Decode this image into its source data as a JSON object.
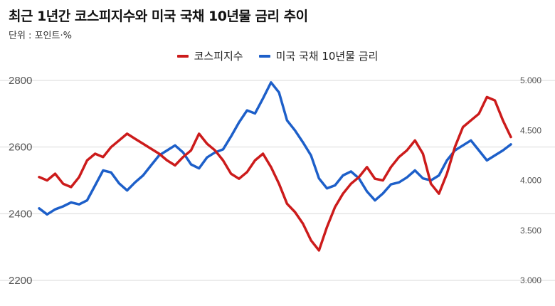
{
  "title": "최근 1년간 코스피지수와 미국 국채 10년물 금리 추이",
  "subtitle": "단위 : 포인트·%",
  "colors": {
    "kospi": "#cc1b1b",
    "treasury": "#1d5fc9",
    "grid": "#d9d9d9"
  },
  "chart_data": {
    "type": "line",
    "title": "최근 1년간 코스피지수와 미국 국채 10년물 금리 추이",
    "subtitle": "단위 : 포인트·%",
    "legend_position": "top-center",
    "grid": true,
    "x_points": 60,
    "left_axis": {
      "ylim": [
        2200,
        2800
      ],
      "ticks": [
        "2800",
        "2600",
        "2400",
        "2200"
      ],
      "tick_values": [
        2800,
        2600,
        2400,
        2200
      ]
    },
    "right_axis": {
      "ylim": [
        3.0,
        5.0
      ],
      "ticks": [
        "5.000",
        "4.500",
        "4.000",
        "3.500",
        "3.000"
      ],
      "tick_values": [
        5.0,
        4.5,
        4.0,
        3.5,
        3.0
      ]
    },
    "series": [
      {
        "name": "코스피지수",
        "axis": "left",
        "values": [
          2510,
          2500,
          2520,
          2490,
          2480,
          2510,
          2560,
          2580,
          2570,
          2600,
          2620,
          2640,
          2625,
          2610,
          2595,
          2580,
          2560,
          2545,
          2570,
          2590,
          2640,
          2610,
          2590,
          2560,
          2520,
          2505,
          2525,
          2560,
          2580,
          2540,
          2490,
          2430,
          2405,
          2370,
          2320,
          2290,
          2360,
          2420,
          2460,
          2490,
          2510,
          2540,
          2505,
          2500,
          2540,
          2570,
          2590,
          2620,
          2580,
          2490,
          2460,
          2520,
          2600,
          2660,
          2680,
          2700,
          2750,
          2740,
          2680,
          2630
        ]
      },
      {
        "name": "미국 국채 10년물 금리",
        "axis": "right",
        "values": [
          3.72,
          3.66,
          3.71,
          3.74,
          3.78,
          3.76,
          3.8,
          3.95,
          4.1,
          4.08,
          3.97,
          3.9,
          3.98,
          4.05,
          4.15,
          4.25,
          4.3,
          4.35,
          4.28,
          4.16,
          4.12,
          4.23,
          4.28,
          4.31,
          4.44,
          4.58,
          4.7,
          4.67,
          4.82,
          4.98,
          4.88,
          4.6,
          4.5,
          4.38,
          4.25,
          4.02,
          3.92,
          3.95,
          4.05,
          4.09,
          4.02,
          3.89,
          3.8,
          3.87,
          3.96,
          3.98,
          4.03,
          4.1,
          4.02,
          4.0,
          4.05,
          4.2,
          4.3,
          4.35,
          4.4,
          4.3,
          4.2,
          4.25,
          4.3,
          4.36
        ]
      }
    ]
  }
}
